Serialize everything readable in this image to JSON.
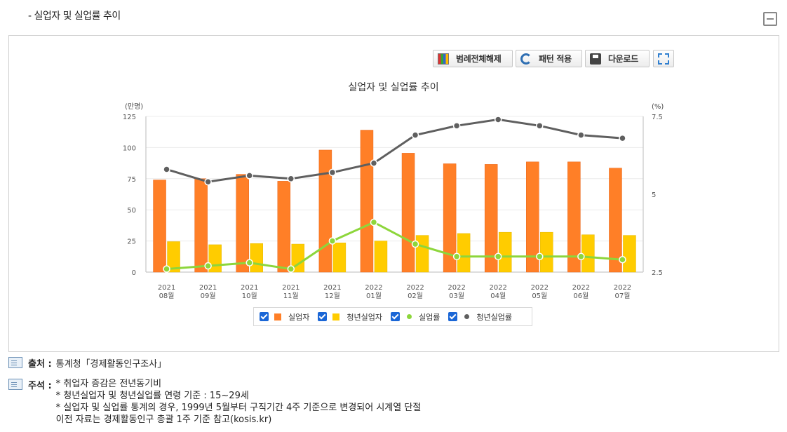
{
  "section": {
    "title": "- 실업자 및 실업률 추이"
  },
  "toolbar": {
    "legend_label": "범례전체해제",
    "pattern_label": "패턴 적용",
    "download_label": "다운로드"
  },
  "legend": {
    "items": [
      {
        "label": "실업자",
        "color": "#ff7f27",
        "shape": "square"
      },
      {
        "label": "청년실업자",
        "color": "#ffcc00",
        "shape": "square"
      },
      {
        "label": "실업률",
        "color": "#8dd63b",
        "shape": "dot"
      },
      {
        "label": "청년실업률",
        "color": "#5f5f5f",
        "shape": "dot"
      }
    ]
  },
  "chart_data": {
    "type": "bar+line",
    "title": "실업자 및 실업률 추이",
    "ylabel_left": "(만명)",
    "ylabel_right": "(%)",
    "ylim_left": [
      0,
      125
    ],
    "ylim_right": [
      2.5,
      7.5
    ],
    "yticks_left": [
      "0",
      "25",
      "50",
      "75",
      "100",
      "125"
    ],
    "yticks_right": [
      "2.5",
      "5",
      "7.5"
    ],
    "categories": [
      [
        "2021",
        "08월"
      ],
      [
        "2021",
        "09월"
      ],
      [
        "2021",
        "10월"
      ],
      [
        "2021",
        "11월"
      ],
      [
        "2021",
        "12월"
      ],
      [
        "2022",
        "01월"
      ],
      [
        "2022",
        "02월"
      ],
      [
        "2022",
        "03월"
      ],
      [
        "2022",
        "04월"
      ],
      [
        "2022",
        "05월"
      ],
      [
        "2022",
        "06월"
      ],
      [
        "2022",
        "07월"
      ]
    ],
    "series": [
      {
        "name": "실업자",
        "type": "bar",
        "axis": "left",
        "color": "#ff7f27",
        "values": [
          74,
          75,
          78.5,
          73,
          98,
          114,
          95.5,
          87,
          86.5,
          88.5,
          88.5,
          83.5
        ]
      },
      {
        "name": "청년실업자",
        "type": "bar",
        "axis": "left",
        "color": "#ffcc00",
        "values": [
          24.5,
          22,
          23,
          22.5,
          23.5,
          25,
          29.5,
          31,
          32,
          32,
          30,
          29.5
        ]
      },
      {
        "name": "실업률",
        "type": "line",
        "axis": "right",
        "color": "#8dd63b",
        "values": [
          2.6,
          2.7,
          2.8,
          2.6,
          3.5,
          4.1,
          3.4,
          3.0,
          3.0,
          3.0,
          3.0,
          2.9
        ]
      },
      {
        "name": "청년실업률",
        "type": "line",
        "axis": "right",
        "color": "#5f5f5f",
        "values": [
          5.8,
          5.4,
          5.6,
          5.5,
          5.7,
          6.0,
          6.9,
          7.2,
          7.4,
          7.2,
          6.9,
          6.8
        ]
      }
    ]
  },
  "notes": {
    "source_label": "출처 :",
    "source_text": "통계청「경제활동인구조사」",
    "remark_label": "주석 :",
    "remark_lines": [
      "* 취업자 증감은 전년동기비",
      "* 청년실업자 및 청년실업률 연령 기준 : 15~29세",
      "* 실업자 및 실업률 통계의 경우, 1999년 5월부터 구직기간 4주 기준으로 변경되어 시계열 단절",
      "이전 자료는 경제활동인구 총괄 1주 기준 참고(kosis.kr)"
    ]
  }
}
